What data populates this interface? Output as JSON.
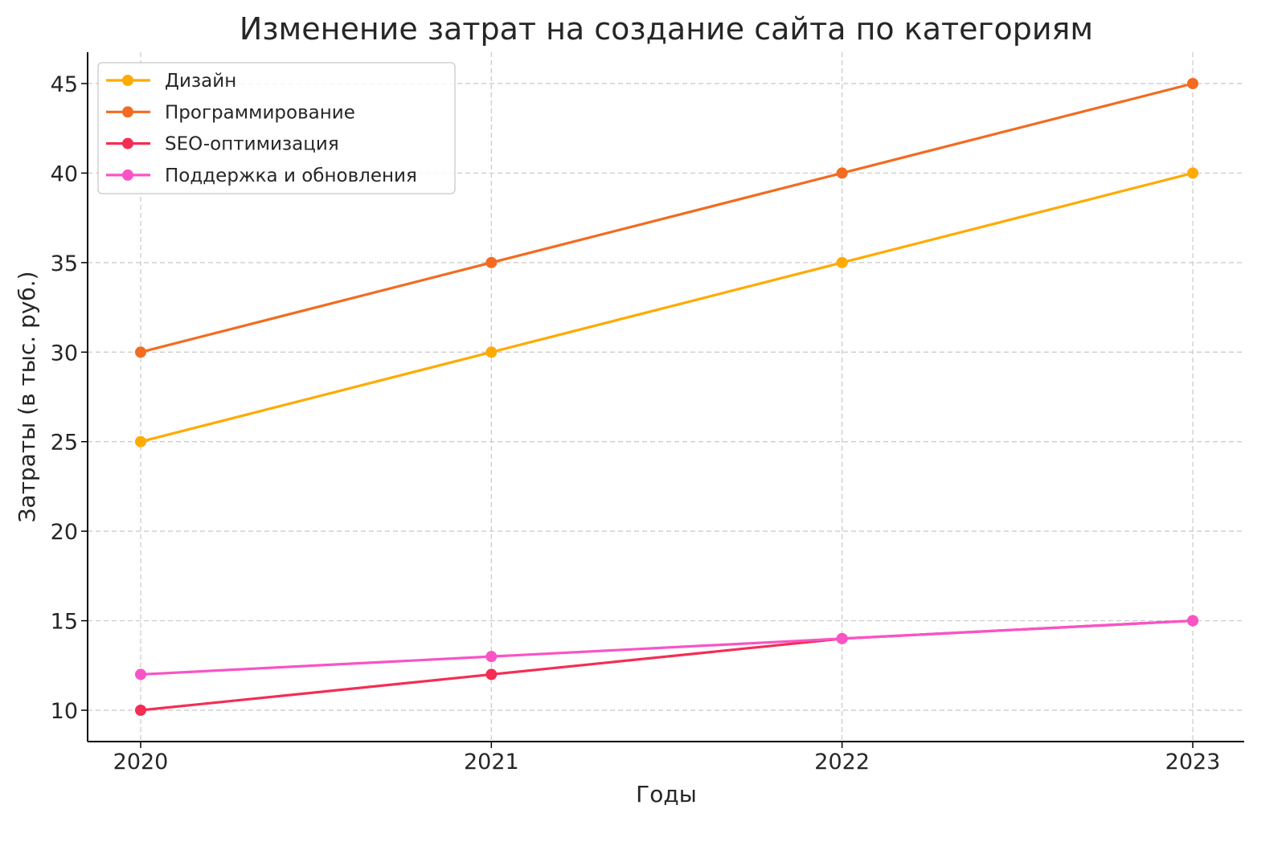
{
  "chart_data": {
    "type": "line",
    "title": "Изменение затрат на создание сайта по категориям",
    "xlabel": "Годы",
    "ylabel": "Затраты (в тыс. руб.)",
    "categories": [
      "2020",
      "2021",
      "2022",
      "2023"
    ],
    "yticks": [
      10,
      15,
      20,
      25,
      30,
      35,
      40,
      45
    ],
    "ylim": [
      8.25,
      46.75
    ],
    "grid": true,
    "legend_position": "top-left",
    "series": [
      {
        "name": "Дизайн",
        "values": [
          25,
          30,
          35,
          40
        ],
        "color": "#FFAA00"
      },
      {
        "name": "Программирование",
        "values": [
          30,
          35,
          40,
          45
        ],
        "color": "#F26B21"
      },
      {
        "name": "SEO-оптимизация",
        "values": [
          10,
          12,
          14,
          15
        ],
        "color": "#F42D55"
      },
      {
        "name": "Поддержка и обновления",
        "values": [
          12,
          13,
          14,
          15
        ],
        "color": "#F854C6"
      }
    ]
  }
}
